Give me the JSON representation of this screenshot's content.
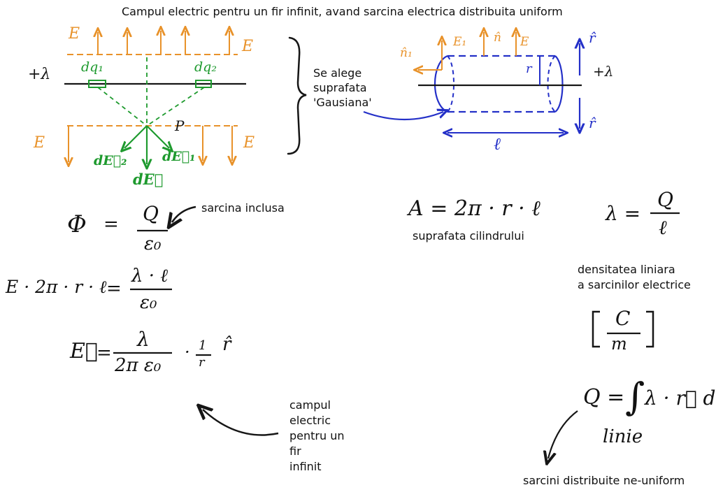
{
  "title": "Campul electric pentru un fir infinit, avand sarcina electrica distribuita uniform",
  "colors": {
    "orange": "#E8922A",
    "green": "#1E9A2E",
    "blue": "#2430C8",
    "ink": "#161616"
  },
  "left_figure": {
    "field_top_left": "E",
    "field_top_right": "E",
    "field_bottom_left": "E",
    "field_bottom_right": "E",
    "charge": "+λ",
    "dq1": "dq₁",
    "dq2": "dq₂",
    "point": "P",
    "de1": "dE⃗₁",
    "de2": "dE⃗₂",
    "de": "dE⃗"
  },
  "gauss_note": [
    "Se alege",
    "suprafata",
    "'Gausiana'"
  ],
  "cylinder_figure": {
    "n1": "n̂₁",
    "e1": "E₁",
    "n": "n̂",
    "e": "E",
    "r_top": "r̂",
    "r_bottom": "r̂",
    "radius": "r",
    "charge": "+λ",
    "length": "ℓ"
  },
  "equations": {
    "flux_lhs": "Φ",
    "flux_eq": "=",
    "flux_num": "Q",
    "flux_den": "ε₀",
    "gauss_lhs": "E · 2π · r · ℓ",
    "gauss_eq": "=",
    "gauss_num": "λ · ℓ",
    "gauss_den": "ε₀",
    "field_lhs": "E⃗",
    "field_eq": "=",
    "field_num": "λ",
    "field_den": "2π ε₀",
    "field_dot": "·",
    "field_inv_num": "1",
    "field_inv_den": "r",
    "field_unit": "r̂",
    "area": "A = 2π · r · ℓ",
    "density_lhs": "λ =",
    "density_num": "Q",
    "density_den": "ℓ",
    "unit_num": "C",
    "unit_den": "m",
    "integral_lhs": "Q =",
    "integral_sign": "∫",
    "integral_body": "λ · r⃗ dl",
    "integral_sub": "linie"
  },
  "labels": {
    "sarcina_inclusa": "sarcina inclusa",
    "suprafata_cilindrului": "suprafata cilindrului",
    "densitatea": [
      "densitatea liniara",
      "a sarcinilor electrice"
    ],
    "campul": [
      "campul",
      "electric",
      "pentru un",
      "fir",
      "infinit"
    ],
    "sarcini_neuniform": "sarcini distribuite ne-uniform"
  }
}
